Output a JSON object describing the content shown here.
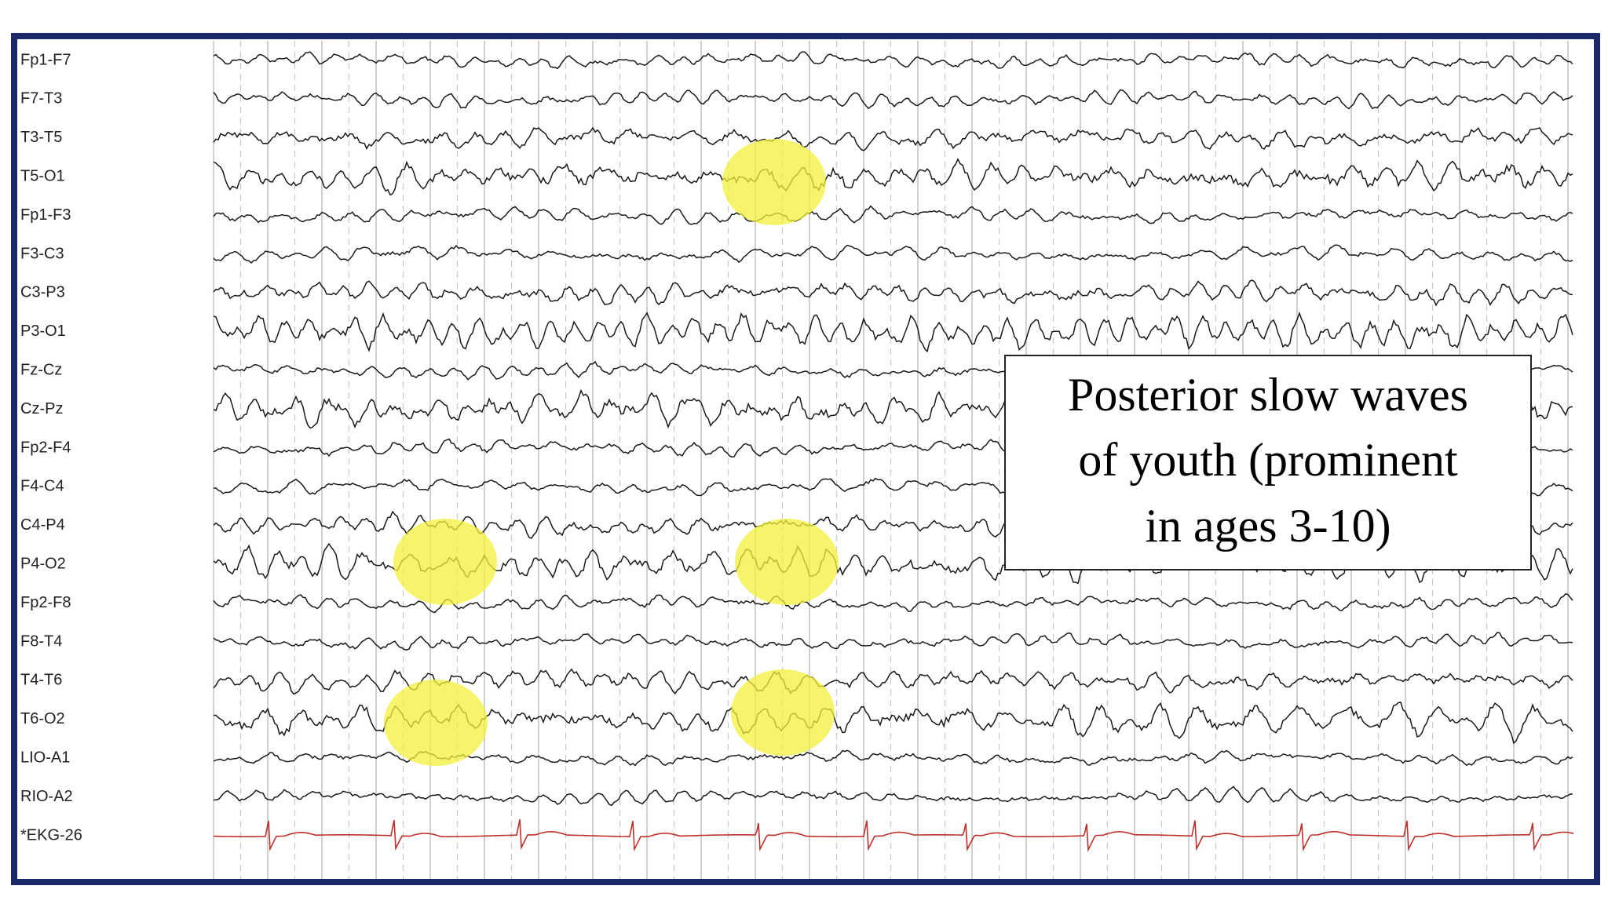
{
  "channels": [
    "Fp1-F7",
    "F7-T3",
    "T3-T5",
    "T5-O1",
    "Fp1-F3",
    "F3-C3",
    "C3-P3",
    "P3-O1",
    "Fz-Cz",
    "Cz-Pz",
    "Fp2-F4",
    "F4-C4",
    "C4-P4",
    "P4-O2",
    "Fp2-F8",
    "F8-T4",
    "T4-T6",
    "T6-O2",
    "LIO-A1",
    "RIO-A2",
    "*EKG-26"
  ],
  "annotation": {
    "lines": [
      "Posterior slow waves",
      "of youth (prominent",
      "in ages 3-10)"
    ]
  }
}
